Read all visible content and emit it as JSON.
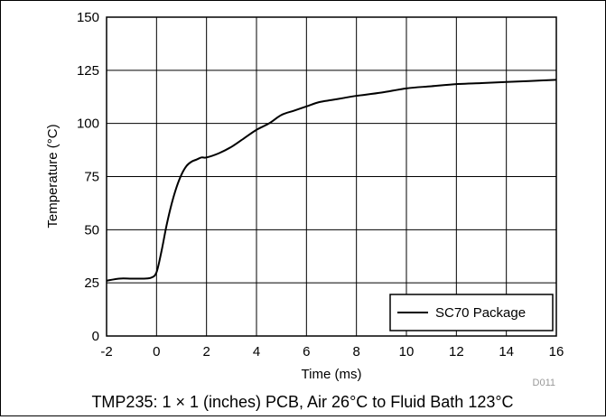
{
  "chart_data": {
    "type": "line",
    "xlabel": "Time (ms)",
    "ylabel": "Temperature (°C)",
    "xlim": [
      -2,
      16
    ],
    "ylim": [
      0,
      150
    ],
    "xticks": [
      "-2",
      "0",
      "2",
      "4",
      "6",
      "8",
      "10",
      "12",
      "14",
      "16"
    ],
    "yticks": [
      "0",
      "25",
      "50",
      "75",
      "100",
      "125",
      "150"
    ],
    "grid": true,
    "legend_position": "bottom-right",
    "figure_id": "D011",
    "caption": "TMP235: 1 × 1 (inches) PCB, Air 26°C to Fluid Bath 123°C",
    "series": [
      {
        "name": "SC70 Package",
        "color": "#000000",
        "x": [
          -2,
          -1.5,
          -1,
          -0.5,
          -0.2,
          0,
          0.2,
          0.4,
          0.6,
          0.8,
          1.0,
          1.2,
          1.4,
          1.6,
          1.8,
          2.0,
          2.5,
          3.0,
          3.5,
          4.0,
          4.5,
          5.0,
          5.5,
          6.0,
          6.5,
          7.0,
          7.5,
          8.0,
          9.0,
          10.0,
          11.0,
          12.0,
          13.0,
          14.0,
          15.0,
          16.0
        ],
        "y": [
          26,
          27,
          27,
          27,
          27.5,
          30,
          40,
          52,
          62,
          70,
          76,
          80,
          82,
          83,
          84,
          84,
          86,
          89,
          93,
          97,
          100,
          104,
          106,
          108,
          110,
          111,
          112,
          113,
          114.5,
          116.5,
          117.5,
          118.5,
          119,
          119.5,
          120,
          120.5
        ]
      }
    ]
  }
}
